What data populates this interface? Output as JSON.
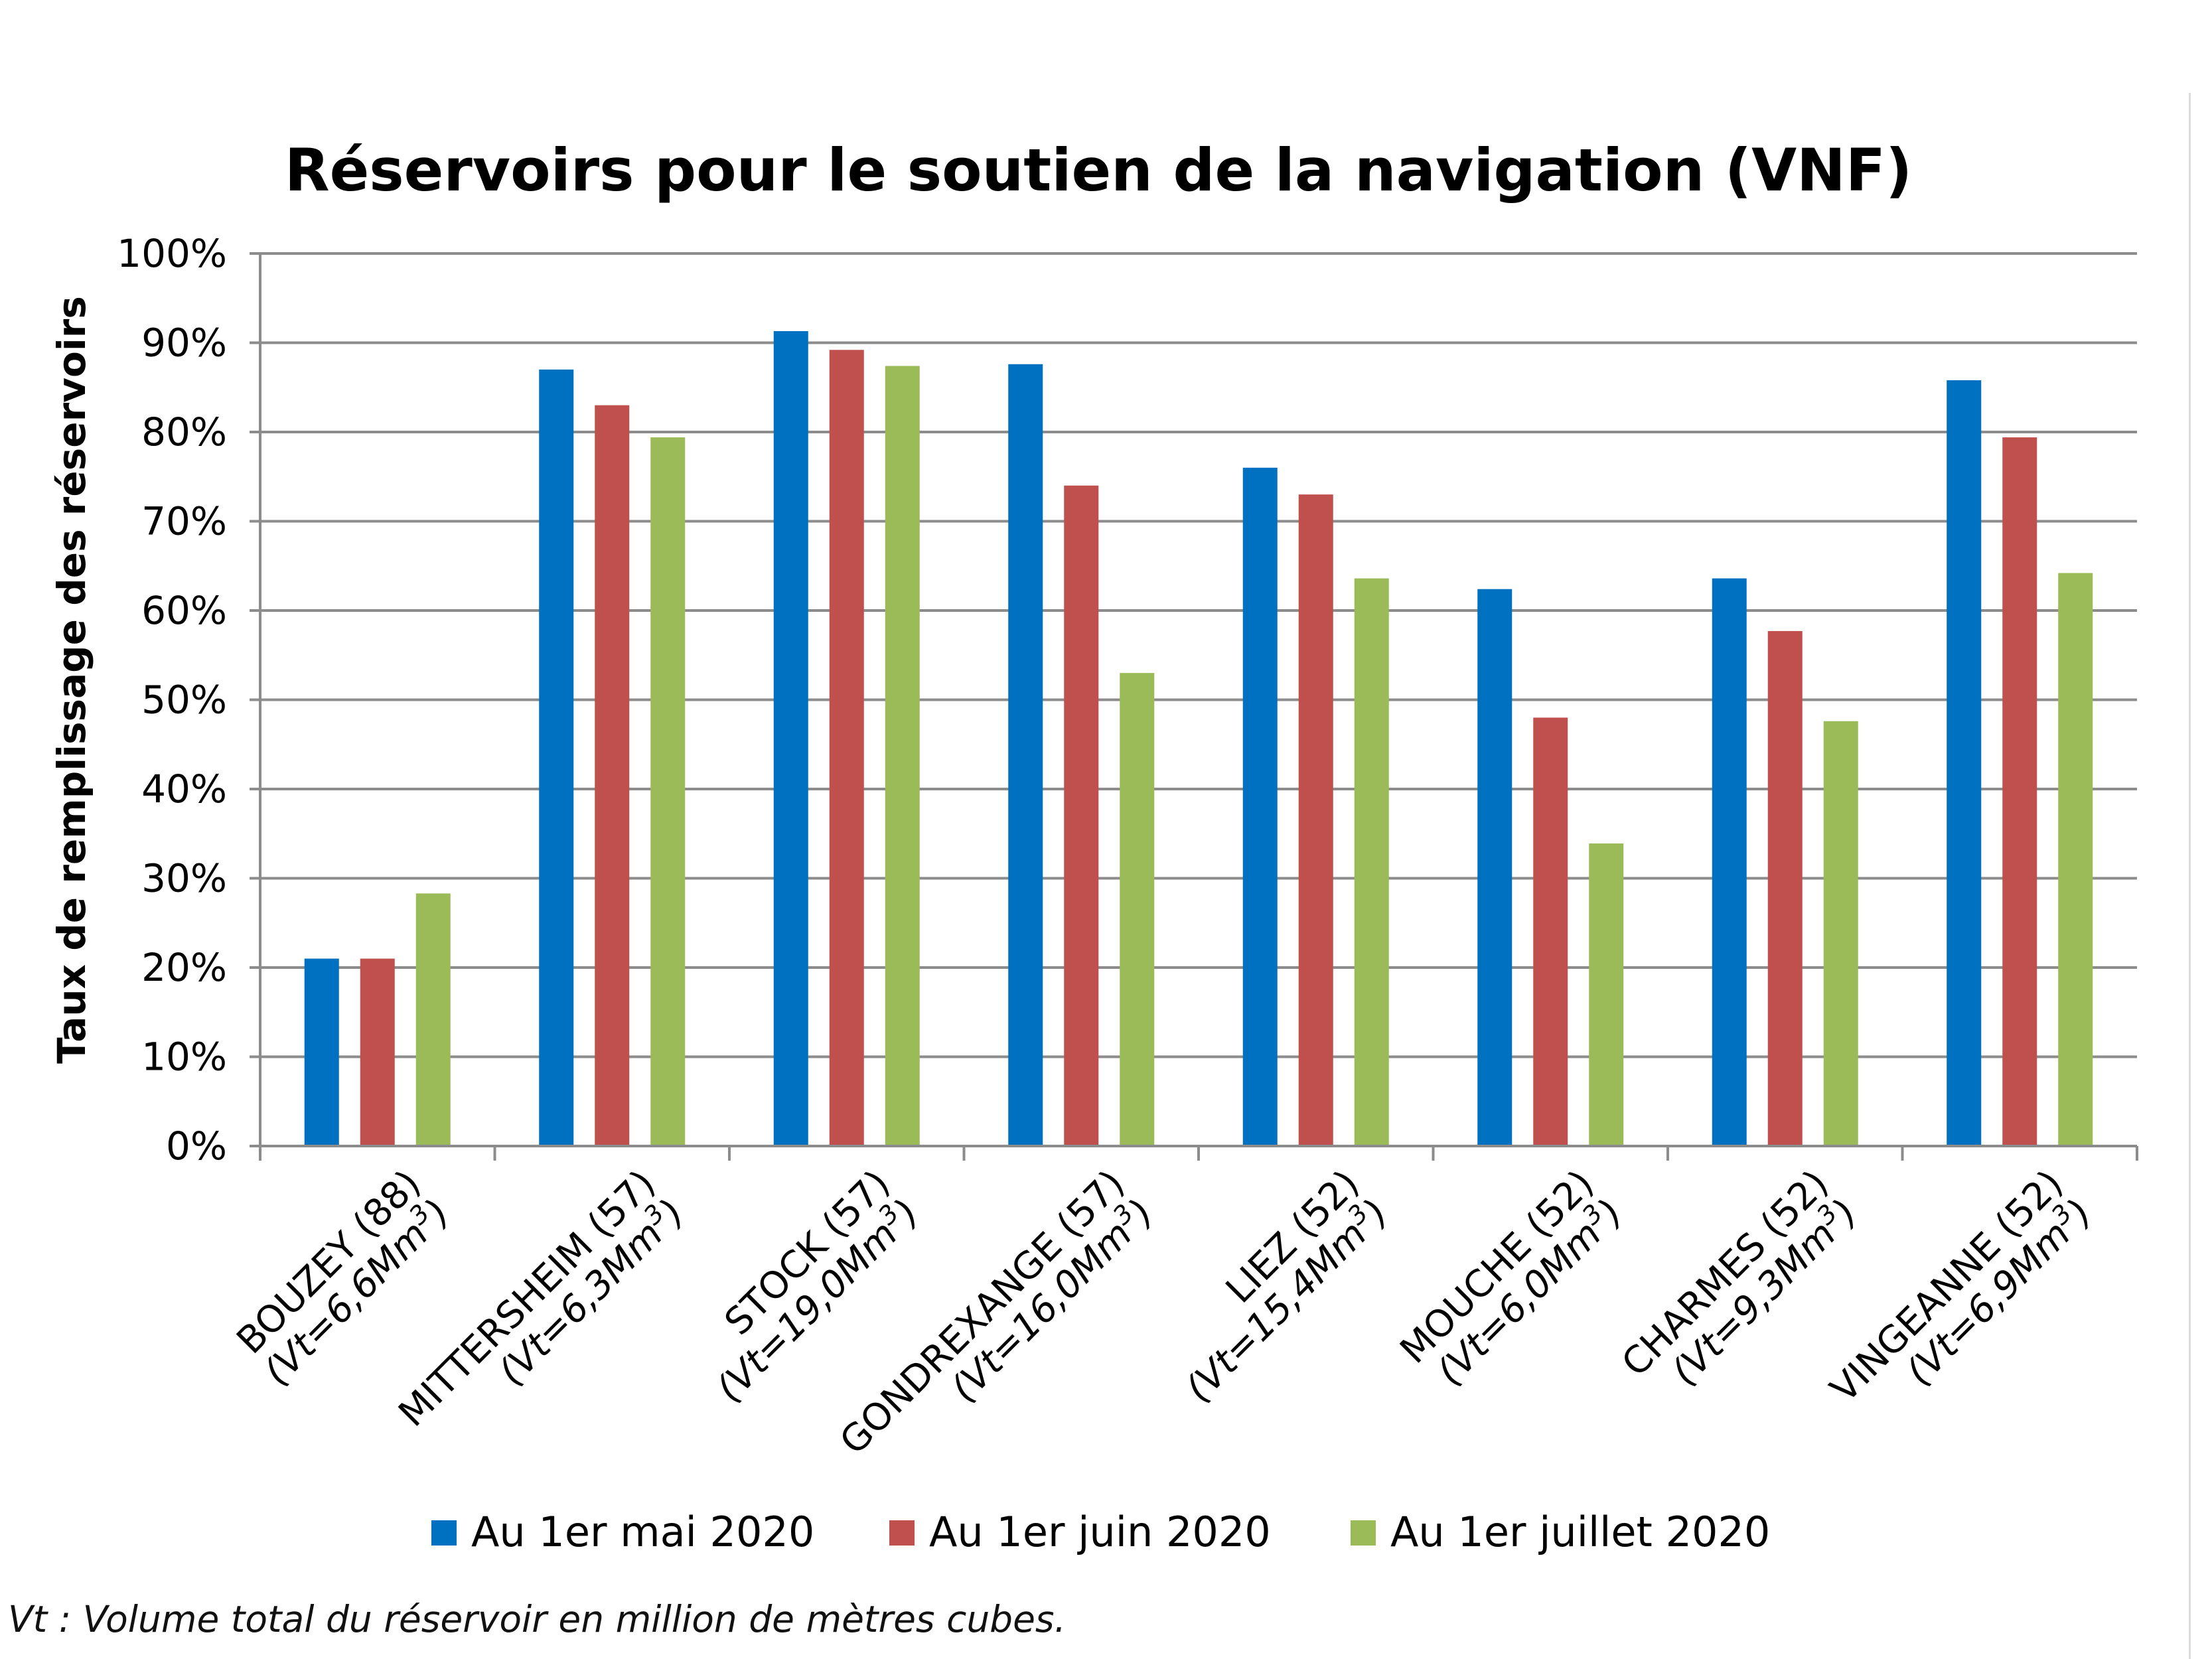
{
  "chart_data": {
    "type": "bar",
    "title": "Réservoirs pour le soutien de la navigation (VNF)",
    "ylabel": "Taux de remplissage des réservoirs",
    "xlabel": "",
    "ylim": [
      0,
      100
    ],
    "yticks": [
      "0%",
      "10%",
      "20%",
      "30%",
      "40%",
      "50%",
      "60%",
      "70%",
      "80%",
      "90%",
      "100%"
    ],
    "grid": true,
    "legend_position": "bottom",
    "categories": [
      {
        "name": "BOUZEY (88)",
        "volume": "(Vt=6,6Mm",
        "sup": "3",
        "close": ")"
      },
      {
        "name": "MITTERSHEIM (57)",
        "volume": "(Vt=6,3Mm",
        "sup": "3",
        "close": ")"
      },
      {
        "name": "STOCK (57)",
        "volume": "(Vt=19,0Mm",
        "sup": "3",
        "close": ")"
      },
      {
        "name": "GONDREXANGE (57)",
        "volume": "(Vt=16,0Mm",
        "sup": "3",
        "close": ")"
      },
      {
        "name": "LIEZ (52)",
        "volume": "(Vt=15,4Mm",
        "sup": "3",
        "close": ")"
      },
      {
        "name": "MOUCHE (52)",
        "volume": "(Vt=6,0Mm",
        "sup": "3",
        "close": ")"
      },
      {
        "name": "CHARMES (52)",
        "volume": "(Vt=9,3Mm",
        "sup": "3",
        "close": ")"
      },
      {
        "name": "VINGEANNE (52)",
        "volume": "(Vt=6,9Mm",
        "sup": "3",
        "close": ")"
      }
    ],
    "series": [
      {
        "name": "Au 1er mai 2020",
        "color": "#0070C0",
        "values": [
          21,
          87,
          91.3,
          87.6,
          76,
          62.4,
          63.6,
          85.8
        ]
      },
      {
        "name": "Au 1er juin 2020",
        "color": "#C0504D",
        "values": [
          21,
          83,
          89.2,
          74,
          73,
          48,
          57.7,
          79.4
        ]
      },
      {
        "name": "Au 1er juillet 2020",
        "color": "#9BBB59",
        "values": [
          28.3,
          79.4,
          87.4,
          53,
          63.6,
          33.9,
          47.6,
          64.2
        ]
      }
    ]
  },
  "footnote": "Vt : Volume total du réservoir en million de mètres cubes."
}
